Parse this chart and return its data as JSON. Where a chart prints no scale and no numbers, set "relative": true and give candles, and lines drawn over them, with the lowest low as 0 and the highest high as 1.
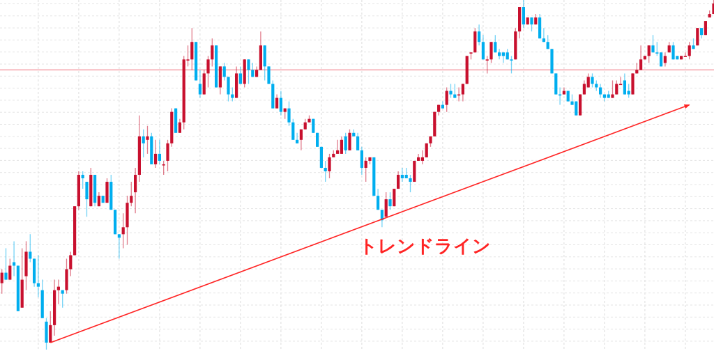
{
  "chart_data": {
    "type": "candlestick",
    "relative": true,
    "grid": true,
    "colors": [
      "#c8102e",
      "#00aeef",
      "#c8102e",
      "#00aeef",
      "#00aeef",
      "#c8102e",
      "#c8102e",
      "#00aeef",
      "#00aeef",
      "#00aeef",
      "#00aeef",
      "#00aeef",
      "#c8102e",
      "#c8102e",
      "#c8102e",
      "#00aeef",
      "#c8102e",
      "#c8102e",
      "#c8102e",
      "#c8102e",
      "#00aeef",
      "#00aeef",
      "#c8102e",
      "#00aeef",
      "#c8102e",
      "#00aeef",
      "#c8102e",
      "#00aeef",
      "#00aeef",
      "#00aeef",
      "#c8102e",
      "#c8102e",
      "#c8102e",
      "#c8102e",
      "#c8102e",
      "#00aeef",
      "#c8102e",
      "#00aeef",
      "#c8102e",
      "#00aeef",
      "#c8102e",
      "#c8102e",
      "#c8102e",
      "#00aeef",
      "#c8102e",
      "#c8102e",
      "#c8102e",
      "#c8102e",
      "#00aeef",
      "#00aeef",
      "#c8102e",
      "#c8102e",
      "#c8102e",
      "#00aeef",
      "#c8102e",
      "#00aeef",
      "#00aeef",
      "#00aeef",
      "#c8102e",
      "#00aeef",
      "#c8102e",
      "#00aeef",
      "#00aeef",
      "#c8102e",
      "#c8102e",
      "#00aeef",
      "#00aeef",
      "#00aeef",
      "#c8102e",
      "#00aeef",
      "#c8102e",
      "#00aeef",
      "#00aeef",
      "#00aeef",
      "#c8102e",
      "#c8102e",
      "#c8102e",
      "#00aeef",
      "#00aeef",
      "#00aeef",
      "#00aeef",
      "#c8102e",
      "#c8102e",
      "#c8102e",
      "#c8102e",
      "#00aeef",
      "#c8102e",
      "#00aeef",
      "#00aeef",
      "#00aeef",
      "#c8102e",
      "#c8102e",
      "#00aeef",
      "#00aeef",
      "#00aeef",
      "#c8102e",
      "#00aeef",
      "#c8102e",
      "#c8102e",
      "#00aeef",
      "#00aeef",
      "#00aeef",
      "#c8102e",
      "#c8102e",
      "#c8102e",
      "#c8102e",
      "#c8102e",
      "#c8102e",
      "#c8102e",
      "#00aeef",
      "#c8102e",
      "#00aeef",
      "#00aeef",
      "#c8102e",
      "#c8102e",
      "#c8102e",
      "#c8102e",
      "#c8102e",
      "#00aeef",
      "#00aeef",
      "#c8102e",
      "#c8102e",
      "#00aeef",
      "#00aeef",
      "#00aeef",
      "#00aeef",
      "#00aeef",
      "#c8102e",
      "#c8102e",
      "#00aeef",
      "#c8102e",
      "#00aeef",
      "#c8102e",
      "#00aeef",
      "#00aeef",
      "#00aeef",
      "#00aeef",
      "#00aeef",
      "#00aeef",
      "#c8102e",
      "#00aeef",
      "#00aeef",
      "#00aeef",
      "#c8102e",
      "#c8102e",
      "#c8102e",
      "#00aeef",
      "#00aeef",
      "#00aeef",
      "#00aeef",
      "#00aeef",
      "#c8102e",
      "#c8102e",
      "#c8102e",
      "#00aeef",
      "#00aeef",
      "#c8102e",
      "#c8102e",
      "#c8102e",
      "#c8102e",
      "#c8102e",
      "#00aeef",
      "#00aeef",
      "#00aeef",
      "#c8102e",
      "#c8102e",
      "#00aeef",
      "#00aeef",
      "#c8102e",
      "#c8102e",
      "#c8102e",
      "#00aeef",
      "#c8102e",
      "#00aeef",
      "#c8102e",
      "#c8102e",
      "#c8102e"
    ],
    "categories": [
      null,
      null,
      null,
      null,
      null,
      null,
      null,
      null,
      null,
      null,
      null,
      null,
      null,
      null,
      null,
      null,
      null,
      null,
      null,
      null,
      null,
      null,
      null,
      null,
      null,
      null,
      null,
      null,
      null,
      null,
      null,
      null,
      null,
      null,
      null,
      null,
      null,
      null,
      null,
      null,
      null,
      null,
      null,
      null,
      null,
      null,
      null,
      null,
      null,
      null,
      null,
      null,
      null,
      null,
      null,
      null,
      null,
      null,
      null,
      null,
      null,
      null,
      null,
      null,
      null,
      null,
      null,
      null,
      null,
      null,
      null,
      null,
      null,
      null,
      null,
      null,
      null,
      null,
      null,
      null,
      null,
      null,
      null,
      null,
      null,
      null,
      null,
      null,
      null,
      null,
      null,
      null,
      null,
      null,
      null,
      null,
      null,
      null,
      null,
      null,
      null,
      null,
      null,
      null,
      null,
      null,
      null,
      null,
      null,
      null,
      null,
      null,
      null,
      null,
      null,
      null,
      null,
      null,
      null,
      null,
      null,
      null,
      null,
      null,
      null,
      null,
      null,
      null,
      null,
      null,
      null,
      null,
      null,
      null,
      null,
      null,
      null,
      null,
      null,
      null,
      null,
      null,
      null,
      null,
      null,
      null,
      null,
      null,
      null,
      null,
      null,
      null,
      null,
      null,
      null,
      null,
      null,
      null,
      null,
      null,
      null,
      null,
      null,
      null,
      null,
      null,
      null,
      null,
      null,
      null,
      null,
      null,
      null,
      null,
      null,
      null,
      null
    ],
    "ohlc": [
      [
        0.19,
        0.23,
        0.16,
        0.22
      ],
      [
        0.22,
        0.29,
        0.2,
        0.2
      ],
      [
        0.2,
        0.26,
        0.2,
        0.24
      ],
      [
        0.25,
        0.31,
        0.21,
        0.24
      ],
      [
        0.24,
        0.24,
        0.11,
        0.11
      ],
      [
        0.12,
        0.29,
        0.12,
        0.2
      ],
      [
        0.21,
        0.31,
        0.17,
        0.28
      ],
      [
        0.28,
        0.33,
        0.25,
        0.26
      ],
      [
        0.26,
        0.26,
        0.18,
        0.19
      ],
      [
        0.19,
        0.27,
        0.15,
        0.18
      ],
      [
        0.17,
        0.2,
        0.09,
        0.09
      ],
      [
        0.08,
        0.09,
        0,
        0.02
      ],
      [
        0.02,
        0.11,
        0.02,
        0.07
      ],
      [
        0.07,
        0.2,
        0.04,
        0.17
      ],
      [
        0.17,
        0.2,
        0.13,
        0.18
      ],
      [
        0.17,
        0.17,
        0.12,
        0.16
      ],
      [
        0.17,
        0.26,
        0.16,
        0.23
      ],
      [
        0.23,
        0.28,
        0.21,
        0.27
      ],
      [
        0.27,
        0.41,
        0.27,
        0.41
      ],
      [
        0.41,
        0.51,
        0.4,
        0.5
      ],
      [
        0.5,
        0.51,
        0.46,
        0.49
      ],
      [
        0.48,
        0.48,
        0.38,
        0.43
      ],
      [
        0.41,
        0.52,
        0.41,
        0.5
      ],
      [
        0.5,
        0.5,
        0.41,
        0.42
      ],
      [
        0.41,
        0.45,
        0.41,
        0.44
      ],
      [
        0.44,
        0.44,
        0.42,
        0.42
      ],
      [
        0.42,
        0.49,
        0.42,
        0.48
      ],
      [
        0.48,
        0.5,
        0.4,
        0.4
      ],
      [
        0.4,
        0.4,
        0.33,
        0.33
      ],
      [
        0.33,
        0.33,
        0.26,
        0.32
      ],
      [
        0.33,
        0.39,
        0.29,
        0.35
      ],
      [
        0.35,
        0.44,
        0.3,
        0.42
      ],
      [
        0.42,
        0.48,
        0.41,
        0.44
      ],
      [
        0.45,
        0.52,
        0.39,
        0.5
      ],
      [
        0.5,
        0.67,
        0.48,
        0.61
      ],
      [
        0.61,
        0.63,
        0.55,
        0.59
      ],
      [
        0.6,
        0.64,
        0.56,
        0.61
      ],
      [
        0.61,
        0.62,
        0.53,
        0.53
      ],
      [
        0.53,
        0.6,
        0.52,
        0.56
      ],
      [
        0.56,
        0.6,
        0.53,
        0.54
      ],
      [
        0.53,
        0.54,
        0.5,
        0.53
      ],
      [
        0.54,
        0.6,
        0.51,
        0.59
      ],
      [
        0.59,
        0.69,
        0.58,
        0.68
      ],
      [
        0.69,
        0.69,
        0.62,
        0.62
      ],
      [
        0.62,
        0.66,
        0.62,
        0.65
      ],
      [
        0.65,
        0.84,
        0.63,
        0.83
      ],
      [
        0.83,
        0.87,
        0.81,
        0.83
      ],
      [
        0.83,
        0.92,
        0.8,
        0.88
      ],
      [
        0.88,
        0.88,
        0.77,
        0.77
      ],
      [
        0.76,
        0.8,
        0.72,
        0.73
      ],
      [
        0.73,
        0.8,
        0.73,
        0.79
      ],
      [
        0.79,
        0.84,
        0.75,
        0.83
      ],
      [
        0.83,
        0.89,
        0.81,
        0.87
      ],
      [
        0.87,
        0.87,
        0.75,
        0.75
      ],
      [
        0.75,
        0.81,
        0.73,
        0.81
      ],
      [
        0.81,
        0.82,
        0.77,
        0.78
      ],
      [
        0.78,
        0.78,
        0.71,
        0.73
      ],
      [
        0.73,
        0.75,
        0.71,
        0.72
      ],
      [
        0.72,
        0.81,
        0.72,
        0.79
      ],
      [
        0.79,
        0.81,
        0.76,
        0.76
      ],
      [
        0.76,
        0.83,
        0.75,
        0.83
      ],
      [
        0.83,
        0.83,
        0.76,
        0.8
      ],
      [
        0.8,
        0.82,
        0.78,
        0.78
      ],
      [
        0.78,
        0.81,
        0.78,
        0.8
      ],
      [
        0.8,
        0.91,
        0.8,
        0.87
      ],
      [
        0.87,
        0.87,
        0.77,
        0.81
      ],
      [
        0.81,
        0.81,
        0.76,
        0.76
      ],
      [
        0.76,
        0.77,
        0.69,
        0.69
      ],
      [
        0.69,
        0.73,
        0.69,
        0.72
      ],
      [
        0.72,
        0.74,
        0.67,
        0.68
      ],
      [
        0.68,
        0.69,
        0.66,
        0.69
      ],
      [
        0.69,
        0.71,
        0.64,
        0.65
      ],
      [
        0.65,
        0.66,
        0.6,
        0.6
      ],
      [
        0.6,
        0.62,
        0.59,
        0.59
      ],
      [
        0.6,
        0.63,
        0.57,
        0.63
      ],
      [
        0.63,
        0.66,
        0.63,
        0.65
      ],
      [
        0.65,
        0.67,
        0.65,
        0.66
      ],
      [
        0.66,
        0.66,
        0.62,
        0.62
      ],
      [
        0.62,
        0.62,
        0.58,
        0.58
      ],
      [
        0.58,
        0.58,
        0.52,
        0.52
      ],
      [
        0.52,
        0.54,
        0.48,
        0.51
      ],
      [
        0.51,
        0.56,
        0.49,
        0.55
      ],
      [
        0.55,
        0.57,
        0.55,
        0.56
      ],
      [
        0.56,
        0.6,
        0.56,
        0.57
      ],
      [
        0.56,
        0.61,
        0.56,
        0.6
      ],
      [
        0.61,
        0.62,
        0.56,
        0.57
      ],
      [
        0.57,
        0.63,
        0.57,
        0.62
      ],
      [
        0.62,
        0.63,
        0.61,
        0.61
      ],
      [
        0.61,
        0.62,
        0.57,
        0.57
      ],
      [
        0.57,
        0.58,
        0.5,
        0.52
      ],
      [
        0.52,
        0.55,
        0.48,
        0.54
      ],
      [
        0.54,
        0.55,
        0.53,
        0.55
      ],
      [
        0.55,
        0.55,
        0.44,
        0.44
      ],
      [
        0.44,
        0.46,
        0.4,
        0.4
      ],
      [
        0.4,
        0.4,
        0.35,
        0.37
      ],
      [
        0.38,
        0.45,
        0.38,
        0.43
      ],
      [
        0.43,
        0.45,
        0.4,
        0.41
      ],
      [
        0.41,
        0.46,
        0.41,
        0.46
      ],
      [
        0.46,
        0.51,
        0.46,
        0.5
      ],
      [
        0.5,
        0.52,
        0.48,
        0.49
      ],
      [
        0.5,
        0.52,
        0.49,
        0.49
      ],
      [
        0.49,
        0.5,
        0.45,
        0.48
      ],
      [
        0.48,
        0.54,
        0.48,
        0.54
      ],
      [
        0.54,
        0.56,
        0.54,
        0.55
      ],
      [
        0.54,
        0.57,
        0.53,
        0.55
      ],
      [
        0.55,
        0.59,
        0.55,
        0.59
      ],
      [
        0.59,
        0.61,
        0.58,
        0.61
      ],
      [
        0.61,
        0.68,
        0.61,
        0.68
      ],
      [
        0.68,
        0.7,
        0.67,
        0.7
      ],
      [
        0.7,
        0.71,
        0.69,
        0.69
      ],
      [
        0.7,
        0.75,
        0.68,
        0.74
      ],
      [
        0.74,
        0.76,
        0.72,
        0.73
      ],
      [
        0.73,
        0.76,
        0.72,
        0.72
      ],
      [
        0.73,
        0.75,
        0.71,
        0.73
      ],
      [
        0.73,
        0.76,
        0.71,
        0.76
      ],
      [
        0.76,
        0.84,
        0.76,
        0.84
      ],
      [
        0.85,
        0.85,
        0.83,
        0.85
      ],
      [
        0.85,
        0.92,
        0.85,
        0.91
      ],
      [
        0.91,
        0.93,
        0.87,
        0.88
      ],
      [
        0.88,
        0.9,
        0.83,
        0.83
      ],
      [
        0.83,
        0.84,
        0.79,
        0.83
      ],
      [
        0.83,
        0.88,
        0.82,
        0.88
      ],
      [
        0.88,
        0.9,
        0.85,
        0.85
      ],
      [
        0.85,
        0.86,
        0.83,
        0.84
      ],
      [
        0.85,
        0.85,
        0.82,
        0.84
      ],
      [
        0.85,
        0.86,
        0.83,
        0.83
      ],
      [
        0.83,
        0.84,
        0.79,
        0.83
      ],
      [
        0.83,
        0.92,
        0.83,
        0.91
      ],
      [
        0.91,
        0.98,
        0.89,
        0.98
      ],
      [
        0.98,
        1,
        0.92,
        0.93
      ],
      [
        0.93,
        0.95,
        0.93,
        0.95
      ],
      [
        0.95,
        0.95,
        0.91,
        0.93
      ],
      [
        0.93,
        0.96,
        0.93,
        0.95
      ],
      [
        0.95,
        0.96,
        0.89,
        0.89
      ],
      [
        0.89,
        0.92,
        0.88,
        0.88
      ],
      [
        0.88,
        0.9,
        0.86,
        0.86
      ],
      [
        0.86,
        0.86,
        0.79,
        0.79
      ],
      [
        0.79,
        0.79,
        0.73,
        0.73
      ],
      [
        0.73,
        0.75,
        0.7,
        0.73
      ],
      [
        0.73,
        0.75,
        0.73,
        0.74
      ],
      [
        0.74,
        0.74,
        0.71,
        0.71
      ],
      [
        0.71,
        0.73,
        0.7,
        0.7
      ],
      [
        0.71,
        0.71,
        0.67,
        0.67
      ],
      [
        0.67,
        0.73,
        0.67,
        0.73
      ],
      [
        0.73,
        0.77,
        0.73,
        0.76
      ],
      [
        0.75,
        0.79,
        0.75,
        0.78
      ],
      [
        0.78,
        0.79,
        0.75,
        0.76
      ],
      [
        0.76,
        0.77,
        0.74,
        0.75
      ],
      [
        0.75,
        0.76,
        0.72,
        0.73
      ],
      [
        0.73,
        0.73,
        0.71,
        0.72
      ],
      [
        0.73,
        0.74,
        0.72,
        0.72
      ],
      [
        0.72,
        0.77,
        0.72,
        0.73
      ],
      [
        0.73,
        0.77,
        0.73,
        0.76
      ],
      [
        0.76,
        0.78,
        0.76,
        0.76
      ],
      [
        0.77,
        0.79,
        0.73,
        0.73
      ],
      [
        0.74,
        0.76,
        0.72,
        0.73
      ],
      [
        0.73,
        0.79,
        0.73,
        0.79
      ],
      [
        0.79,
        0.82,
        0.79,
        0.8
      ],
      [
        0.8,
        0.87,
        0.8,
        0.83
      ],
      [
        0.83,
        0.84,
        0.83,
        0.84
      ],
      [
        0.84,
        0.87,
        0.82,
        0.87
      ],
      [
        0.87,
        0.9,
        0.85,
        0.85
      ],
      [
        0.85,
        0.88,
        0.84,
        0.85
      ],
      [
        0.85,
        0.85,
        0.81,
        0.81
      ],
      [
        0.82,
        0.85,
        0.81,
        0.84
      ],
      [
        0.85,
        0.88,
        0.85,
        0.87
      ],
      [
        0.87,
        0.88,
        0.83,
        0.83
      ],
      [
        0.84,
        0.84,
        0.83,
        0.83
      ],
      [
        0.83,
        0.84,
        0.83,
        0.84
      ],
      [
        0.84,
        0.85,
        0.84,
        0.84
      ],
      [
        0.84,
        0.88,
        0.83,
        0.87
      ],
      [
        0.87,
        0.89,
        0.86,
        0.86
      ],
      [
        0.87,
        0.92,
        0.87,
        0.92
      ],
      [
        0.92,
        0.92,
        0.89,
        0.9
      ],
      [
        0.9,
        0.94,
        0.9,
        0.94
      ],
      [
        0.95,
        0.97,
        0.95,
        0.96
      ],
      [
        0.96,
        1,
        0.96,
        0.99
      ]
    ],
    "series": [
      {
        "type": "line",
        "color": "#ff2424",
        "values": [
          null,
          null,
          null,
          null,
          null,
          null,
          null,
          null,
          null,
          null,
          null,
          null,
          0.02,
          null,
          null,
          null,
          null,
          null,
          null,
          null,
          null,
          null,
          null,
          null,
          null,
          null,
          null,
          null,
          null,
          null,
          null,
          null,
          null,
          null,
          null,
          null,
          null,
          null,
          null,
          null,
          null,
          null,
          null,
          null,
          null,
          null,
          null,
          null,
          null,
          null,
          null,
          null,
          null,
          null,
          null,
          null,
          null,
          null,
          null,
          null,
          null,
          null,
          null,
          null,
          null,
          null,
          null,
          null,
          null,
          null,
          null,
          null,
          null,
          null,
          null,
          null,
          null,
          null,
          null,
          null,
          null,
          null,
          null,
          null,
          null,
          null,
          null,
          null,
          null,
          null,
          null,
          null,
          null,
          null,
          null,
          null,
          null,
          null,
          null,
          null,
          null,
          null,
          null,
          null,
          null,
          null,
          null,
          null,
          null,
          null,
          null,
          null,
          null,
          null,
          null,
          null,
          null,
          null,
          null,
          null,
          null,
          null,
          null,
          null,
          null,
          null,
          null,
          null,
          null,
          null,
          null,
          null,
          null,
          null,
          null,
          null,
          null,
          null,
          null,
          null,
          null,
          null,
          null,
          null,
          null,
          null,
          null,
          null,
          null,
          null,
          null,
          null,
          null,
          null,
          null,
          null,
          null,
          null,
          null,
          null,
          null,
          null,
          null,
          null,
          null,
          null,
          null,
          null,
          null,
          null,
          0.7,
          null,
          null,
          null,
          null,
          null,
          null
        ]
      }
    ],
    "ref_lines": [
      {
        "axis": "y",
        "value": 0.8,
        "color": "#f28b95"
      }
    ],
    "annotations": [
      "トレンドライン"
    ]
  }
}
